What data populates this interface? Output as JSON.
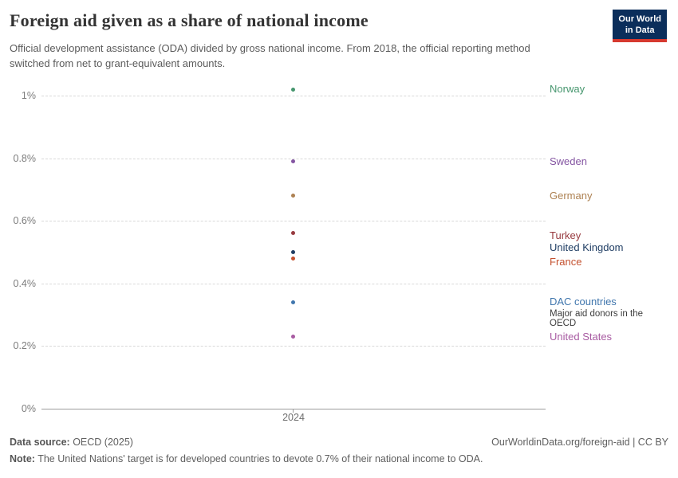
{
  "header": {
    "title": "Foreign aid given as a share of national income",
    "subtitle": "Official development assistance (ODA) divided by gross national income. From 2018, the official reporting method switched from net to grant-equivalent amounts.",
    "logo": {
      "line1": "Our World",
      "line2": "in Data"
    },
    "logo_colors": {
      "background": "#0B2E5B",
      "stripe": "#D6392F"
    }
  },
  "chart_data": {
    "type": "scatter",
    "title": "Foreign aid given as a share of national income",
    "x": [
      2024
    ],
    "xticks": [
      "2024"
    ],
    "yticks": [
      {
        "value": 0,
        "label": "0%"
      },
      {
        "value": 0.2,
        "label": "0.2%"
      },
      {
        "value": 0.4,
        "label": "0.4%"
      },
      {
        "value": 0.6,
        "label": "0.6%"
      },
      {
        "value": 0.8,
        "label": "0.8%"
      },
      {
        "value": 1.0,
        "label": "1%"
      }
    ],
    "ylim": [
      0,
      1.05
    ],
    "grid": "horizontal-dashed",
    "legend_position": "right-of-points",
    "series": [
      {
        "name": "Norway",
        "value_pct": 1.02,
        "color": "#46966E"
      },
      {
        "name": "Sweden",
        "value_pct": 0.79,
        "color": "#8455A2"
      },
      {
        "name": "Germany",
        "value_pct": 0.68,
        "color": "#AD8152"
      },
      {
        "name": "Turkey",
        "value_pct": 0.56,
        "color": "#973A3F"
      },
      {
        "name": "United Kingdom",
        "value_pct": 0.5,
        "color": "#1F3D63"
      },
      {
        "name": "France",
        "value_pct": 0.48,
        "color": "#C4512F"
      },
      {
        "name": "DAC countries",
        "value_pct": 0.34,
        "color": "#4076AD",
        "sublabel": "Major aid donors in the OECD"
      },
      {
        "name": "United States",
        "value_pct": 0.23,
        "color": "#A85BA2"
      }
    ]
  },
  "footer": {
    "datasource_label": "Data source:",
    "datasource_value": " OECD (2025)",
    "credit": "OurWorldinData.org/foreign-aid | CC BY",
    "note_label": "Note:",
    "note_value": " The United Nations' target is for developed countries to devote 0.7% of their national income to ODA."
  }
}
